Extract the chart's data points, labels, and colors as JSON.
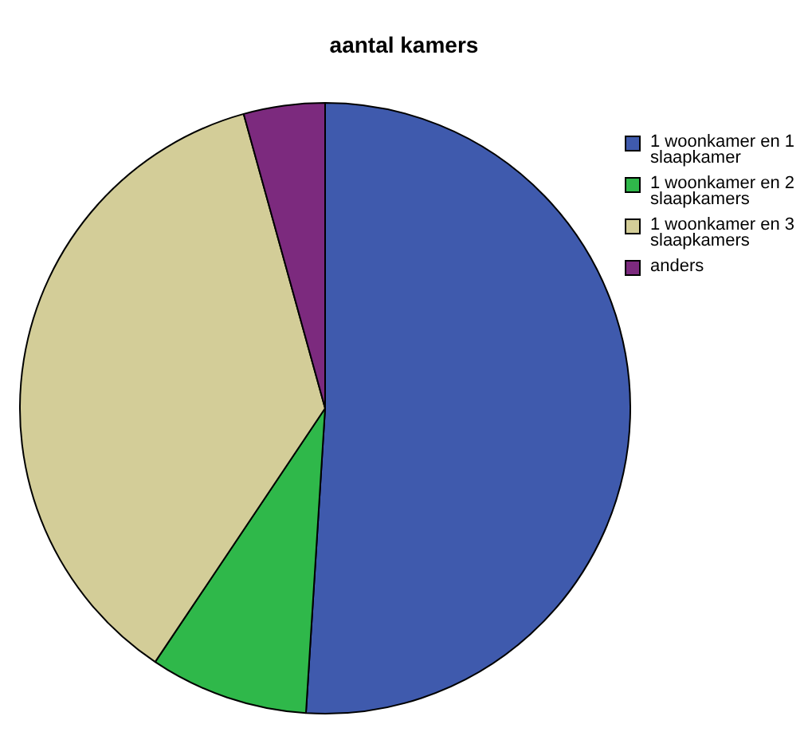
{
  "chart_data": {
    "type": "pie",
    "title": "aantal kamers",
    "categories": [
      "1 woonkamer en 1 slaapkamer",
      "1 woonkamer en 2 slaapkamers",
      "1 woonkamer en 3 slaapkamers",
      "anders"
    ],
    "values": [
      51,
      8.4,
      36.3,
      4.3
    ],
    "colors": [
      "#3f5aad",
      "#2fb84a",
      "#d3cd98",
      "#7c2a7e"
    ],
    "legend": "top right"
  }
}
